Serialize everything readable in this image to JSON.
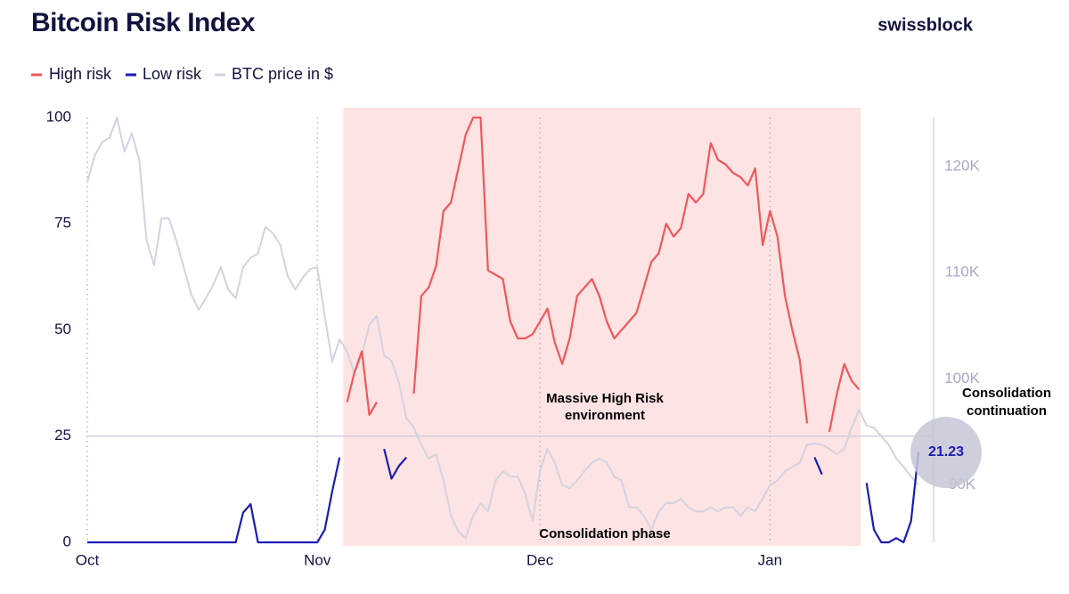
{
  "chart_data": {
    "type": "line",
    "title": "Bitcoin Risk Index",
    "brand": "swissblock",
    "xlim": [
      0,
      112
    ],
    "xticks": [
      {
        "value": 0,
        "label": "Oct"
      },
      {
        "value": 31,
        "label": "Nov"
      },
      {
        "value": 61,
        "label": "Dec"
      },
      {
        "value": 92,
        "label": "Jan"
      }
    ],
    "ylim": [
      0,
      100
    ],
    "yticks": [
      0,
      25,
      50,
      75,
      100
    ],
    "y2lim": [
      84600,
      124600
    ],
    "y2ticks": [
      {
        "value": 90000,
        "label": "90K"
      },
      {
        "value": 100000,
        "label": "100K"
      },
      {
        "value": 110000,
        "label": "110K"
      },
      {
        "value": 120000,
        "label": "120K"
      }
    ],
    "threshold": 25,
    "shaded_range": [
      34.5,
      104.2
    ],
    "shaded_color": "#fde3e3",
    "annotations": [
      "Massive High Risk environment",
      "Consolidation phase",
      "Consolidation continuation"
    ],
    "x": [
      0,
      1,
      2,
      3,
      4,
      5,
      6,
      7,
      8,
      9,
      10,
      11,
      12,
      13,
      14,
      15,
      16,
      17,
      18,
      19,
      20,
      21,
      22,
      23,
      24,
      25,
      26,
      27,
      28,
      29,
      30,
      31,
      32,
      33,
      34,
      35,
      36,
      37,
      38,
      39,
      40,
      41,
      42,
      43,
      44,
      45,
      46,
      47,
      48,
      49,
      50,
      51,
      52,
      53,
      54,
      55,
      56,
      57,
      58,
      59,
      60,
      61,
      62,
      63,
      64,
      65,
      66,
      67,
      68,
      69,
      70,
      71,
      72,
      73,
      74,
      75,
      76,
      77,
      78,
      79,
      80,
      81,
      82,
      83,
      84,
      85,
      86,
      87,
      88,
      89,
      90,
      91,
      92,
      93,
      94,
      95,
      96,
      97,
      98,
      99,
      100,
      101,
      102,
      103,
      104,
      105,
      106,
      107,
      108,
      109,
      110,
      111,
      112
    ],
    "series": [
      {
        "name": "High risk",
        "color": "#f0585a",
        "values": [
          null,
          null,
          null,
          null,
          null,
          null,
          null,
          null,
          null,
          null,
          null,
          null,
          null,
          null,
          null,
          null,
          null,
          null,
          null,
          null,
          null,
          null,
          null,
          null,
          null,
          null,
          null,
          null,
          null,
          null,
          null,
          null,
          null,
          null,
          null,
          33,
          40,
          45,
          30,
          33,
          null,
          null,
          null,
          null,
          35,
          58,
          60,
          65,
          78,
          80,
          88,
          96,
          100,
          100,
          64,
          63,
          62,
          52,
          48,
          48,
          49,
          52,
          55,
          47,
          42,
          48,
          58,
          60,
          62,
          58,
          52,
          48,
          50,
          52,
          54,
          60,
          66,
          68,
          75,
          72,
          74,
          82,
          80,
          82,
          94,
          90,
          89,
          87,
          86,
          84,
          88,
          70,
          78,
          72,
          58,
          50,
          43,
          28,
          null,
          null,
          26,
          35,
          42,
          38,
          36,
          null,
          null,
          null,
          null,
          null,
          null,
          null,
          null
        ]
      },
      {
        "name": "Low risk",
        "color": "#1c1cb4",
        "values": [
          0,
          0,
          0,
          0,
          0,
          0,
          0,
          0,
          0,
          0,
          0,
          0,
          0,
          0,
          0,
          0,
          0,
          0,
          0,
          0,
          0,
          7,
          9,
          0,
          0,
          0,
          0,
          0,
          0,
          0,
          0,
          0,
          3,
          12,
          20,
          null,
          null,
          null,
          null,
          null,
          22,
          15,
          18,
          20,
          null,
          null,
          null,
          null,
          null,
          null,
          null,
          null,
          null,
          null,
          null,
          null,
          null,
          null,
          null,
          null,
          null,
          null,
          null,
          null,
          null,
          null,
          null,
          null,
          null,
          null,
          null,
          null,
          null,
          null,
          null,
          null,
          null,
          null,
          null,
          null,
          null,
          null,
          null,
          null,
          null,
          null,
          null,
          null,
          null,
          null,
          null,
          null,
          null,
          null,
          null,
          null,
          null,
          null,
          20,
          16,
          null,
          null,
          null,
          null,
          null,
          14,
          3,
          0,
          0,
          1,
          0,
          5,
          21.23
        ]
      },
      {
        "name": "BTC price in $",
        "color": "#d3d2e0",
        "axis": "y2",
        "values": [
          118500,
          121000,
          122300,
          122700,
          124600,
          121400,
          123100,
          120600,
          113000,
          110700,
          115100,
          115100,
          113000,
          110500,
          108000,
          106500,
          107600,
          108900,
          110500,
          108400,
          107600,
          110500,
          111400,
          111800,
          114300,
          113700,
          112600,
          109700,
          108400,
          109500,
          110300,
          110500,
          105900,
          101600,
          103700,
          102600,
          100500,
          102200,
          105100,
          105900,
          102200,
          101700,
          99600,
          96300,
          95400,
          93800,
          92500,
          92900,
          90400,
          87100,
          85600,
          85000,
          87100,
          88300,
          87500,
          90400,
          91300,
          90800,
          90800,
          89200,
          86600,
          91300,
          93400,
          92100,
          90000,
          89700,
          90400,
          91300,
          92100,
          92500,
          92100,
          90800,
          90400,
          87900,
          87900,
          87100,
          85800,
          87500,
          88300,
          88300,
          88700,
          87900,
          87500,
          87500,
          87900,
          87500,
          87900,
          87900,
          87100,
          87900,
          87500,
          88700,
          90000,
          90400,
          91300,
          91700,
          92100,
          93800,
          93900,
          93800,
          93400,
          92900,
          93400,
          95400,
          97100,
          95600,
          95400,
          94600,
          93800,
          92500,
          91700,
          90800,
          90000
        ]
      }
    ]
  }
}
